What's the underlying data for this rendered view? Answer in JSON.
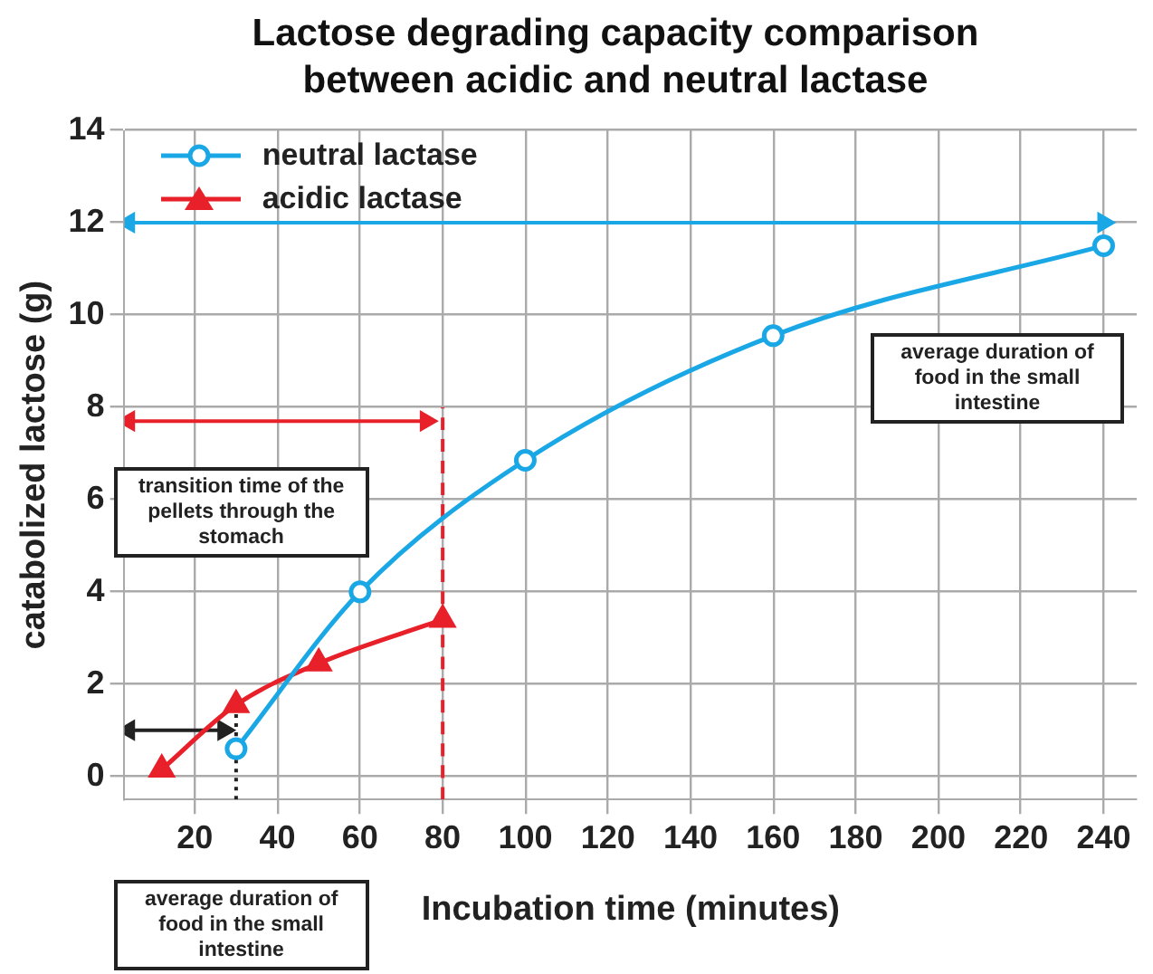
{
  "chart_data": {
    "type": "line",
    "title": "Lactose degrading capacity comparison between acidic and neutral lactase",
    "xlabel": "Incubation time (minutes)",
    "ylabel": "catabolized lactose (g)",
    "xlim": [
      3,
      248
    ],
    "xticks": [
      20,
      40,
      60,
      80,
      100,
      120,
      140,
      160,
      180,
      200,
      220,
      240
    ],
    "ylim": [
      -0.5,
      14
    ],
    "yticks": [
      0,
      2,
      4,
      6,
      8,
      10,
      12,
      14
    ],
    "grid": true,
    "legend": "top left",
    "series": [
      {
        "name": "neutral lactase",
        "color": "#1aa7e6",
        "marker": "circle",
        "x": [
          30,
          60,
          100,
          160,
          240
        ],
        "values": [
          0.6,
          4.0,
          6.85,
          9.55,
          11.5
        ]
      },
      {
        "name": "acidic lactase",
        "color": "#e8202a",
        "marker": "triangle",
        "x": [
          12,
          30,
          50,
          80
        ],
        "values": [
          0.15,
          1.55,
          2.45,
          3.4
        ]
      },
      {
        "color": "#1aa7e6",
        "marker": "triangle",
        "line_style": "solid",
        "x": [
          4,
          240
        ],
        "values": [
          12,
          12
        ]
      },
      {
        "color": "#e8202a",
        "marker": "triangle",
        "line_style": "solid",
        "x": [
          4,
          76
        ],
        "values": [
          7.7,
          7.7
        ]
      },
      {
        "color": "#222222",
        "marker": "triangle",
        "line_style": "solid",
        "x": [
          4,
          27
        ],
        "values": [
          1,
          1
        ]
      },
      {
        "color": "#e8202a",
        "marker": "none",
        "line_style": "dashed",
        "x": [
          80,
          80
        ],
        "values": [
          -0.5,
          8
        ]
      },
      {
        "color": "#222222",
        "marker": "none",
        "line_style": "dotted",
        "x": [
          30,
          30
        ],
        "values": [
          -0.5,
          1.5
        ]
      }
    ],
    "annotations": [
      "average duration of food in the small intestine",
      "transition time of the pellets through the stomach",
      "average duration of food in the small intestine"
    ]
  }
}
